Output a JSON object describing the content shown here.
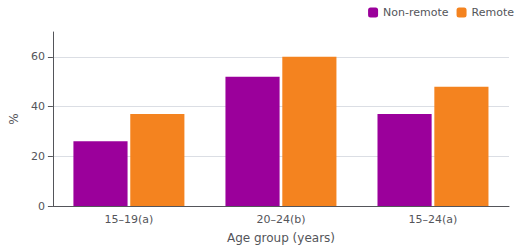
{
  "chart_data": {
    "type": "bar",
    "categories": [
      "15–19(a)",
      "20–24(b)",
      "15–24(a)"
    ],
    "series": [
      {
        "name": "Non-remote",
        "color": "#9B009B",
        "values": [
          26,
          52,
          37
        ]
      },
      {
        "name": "Remote",
        "color": "#F4831F",
        "values": [
          37,
          60,
          48
        ]
      }
    ],
    "xlabel": "Age group (years)",
    "ylabel": "%",
    "ylim": [
      0,
      70
    ],
    "yticks": [
      0,
      20,
      40,
      60
    ],
    "grid": true,
    "legend": "upper right"
  }
}
